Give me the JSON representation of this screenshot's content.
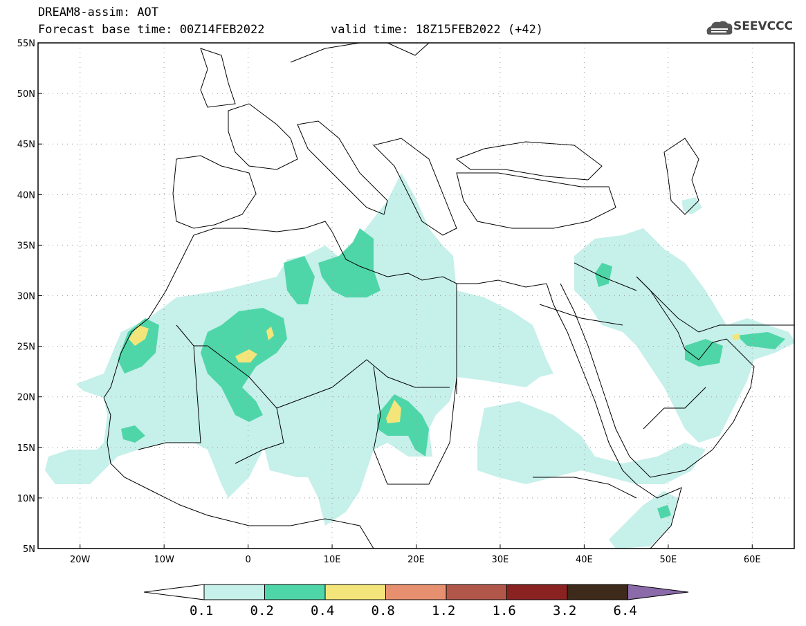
{
  "header": {
    "model_line": "DREAM8-assim: AOT",
    "base_time": "Forecast base time: 00Z14FEB2022",
    "valid_time": "valid time: 18Z15FEB2022 (+42)",
    "logo_text": "SEEVCCC"
  },
  "map": {
    "projection": "equirectangular",
    "lon_range": [
      -25,
      65
    ],
    "lat_range": [
      5,
      55
    ],
    "lat_labels": [
      "55N",
      "50N",
      "45N",
      "40N",
      "35N",
      "30N",
      "25N",
      "20N",
      "15N",
      "10N",
      "5N"
    ],
    "lon_labels": [
      "20W",
      "10W",
      "0",
      "10E",
      "20E",
      "30E",
      "40E",
      "50E",
      "60E"
    ],
    "lat_ticks": [
      55,
      50,
      45,
      40,
      35,
      30,
      25,
      20,
      15,
      10,
      5
    ],
    "lon_ticks": [
      -20,
      -10,
      0,
      10,
      20,
      30,
      40,
      50,
      60
    ],
    "grid": "dotted"
  },
  "colorbar": {
    "labels": [
      "0.1",
      "0.2",
      "0.4",
      "0.8",
      "1.2",
      "1.6",
      "3.2",
      "6.4"
    ],
    "colors": [
      "#c6f0ea",
      "#4fd6a8",
      "#f4e57a",
      "#e69070",
      "#b0574a",
      "#8a2222",
      "#3e2a1a",
      "#8a6aa8"
    ],
    "under_color": "#ffffff"
  },
  "aot_fields": {
    "level_colors": {
      "0.1": "#c6f0ea",
      "0.2": "#4fd6a8",
      "0.4": "#f4e57a"
    }
  }
}
